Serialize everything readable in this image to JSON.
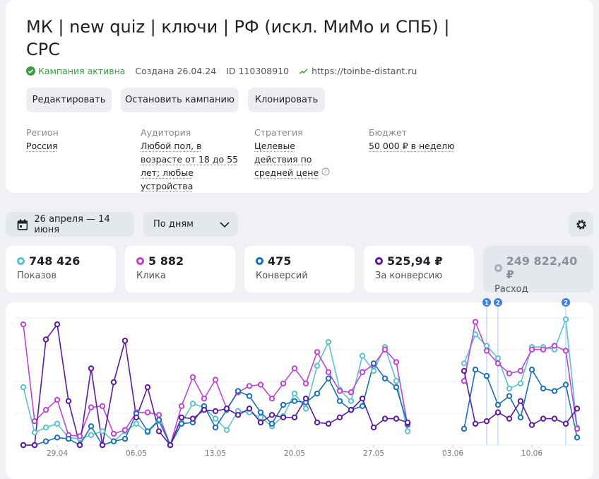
{
  "campaign": {
    "title": "МК | new quiz | ключи | РФ (искл. МиМо и СПБ) | CPC",
    "status": "Кампания активна",
    "created": "Создана 26.04.24",
    "id": "ID 110308910",
    "url": "https://toinbe-distant.ru"
  },
  "buttons": [
    "Редактировать",
    "Остановить кампанию",
    "Клонировать"
  ],
  "info": [
    {
      "label": "Регион",
      "value": "Россия"
    },
    {
      "label": "Аудитория",
      "value": "Любой пол, в возрасте от 18 до 55 лет; любые устройства"
    },
    {
      "label": "Стратегия",
      "value": "Целевые действия по средней цене"
    },
    {
      "label": "Бюджет",
      "value": "50 000 ₽ в неделю"
    }
  ],
  "filters": {
    "date": "26 апреля — 14 июня",
    "period": "По дням"
  },
  "metrics": [
    {
      "value": "748 426",
      "label": "Показов",
      "color": "#5cc3cc"
    },
    {
      "value": "5 882",
      "label": "Клика",
      "color": "#c044d3"
    },
    {
      "value": "475",
      "label": "Конверсий",
      "color": "#1b6fb3"
    },
    {
      "value": "525,94 ₽",
      "label": "За конверсию",
      "color": "#5b1c9c"
    },
    {
      "value": "249 822,40 ₽",
      "label": "Расход",
      "color": "#a9afb9"
    }
  ],
  "chart_data": {
    "type": "line",
    "ylim": [
      0,
      100
    ],
    "categories": [
      null,
      null,
      null,
      "29.04",
      null,
      null,
      null,
      null,
      null,
      null,
      "06.05",
      null,
      null,
      null,
      null,
      null,
      null,
      "13.05",
      null,
      null,
      null,
      null,
      null,
      null,
      "20.05",
      null,
      null,
      null,
      null,
      null,
      null,
      "27.05",
      null,
      null,
      null,
      null,
      null,
      null,
      "03.06",
      null,
      null,
      null,
      null,
      null,
      null,
      "10.06",
      null,
      null,
      null,
      null
    ],
    "series": [
      {
        "color": "#5cc3cc",
        "values": [
          46,
          10,
          14,
          17,
          6,
          5,
          8,
          11,
          3,
          11,
          17,
          10,
          19,
          0,
          18,
          33,
          30,
          21,
          12,
          27,
          26,
          22,
          15,
          23,
          41,
          29,
          63,
          82,
          44,
          35,
          71,
          59,
          78,
          51,
          11,
          null,
          null,
          null,
          null,
          65,
          88,
          79,
          69,
          45,
          49,
          78,
          78,
          76,
          100,
          14
        ]
      },
      {
        "color": "#c044d3",
        "values": [
          96,
          19,
          28,
          36,
          8,
          7,
          30,
          31,
          9,
          12,
          26,
          26,
          24,
          0,
          31,
          54,
          37,
          52,
          29,
          42,
          47,
          48,
          37,
          49,
          61,
          49,
          74,
          58,
          43,
          42,
          58,
          64,
          76,
          66,
          16,
          null,
          null,
          null,
          null,
          51,
          98,
          75,
          65,
          57,
          59,
          76,
          76,
          79,
          75,
          13
        ]
      },
      {
        "color": "#1b6fb3",
        "values": [
          0,
          0,
          3,
          6,
          5,
          0,
          15,
          0,
          3,
          5,
          25,
          11,
          20,
          0,
          17,
          18,
          31,
          14,
          28,
          43,
          39,
          26,
          17,
          32,
          35,
          34,
          41,
          53,
          35,
          28,
          31,
          65,
          53,
          46,
          17,
          null,
          null,
          null,
          null,
          13,
          60,
          55,
          32,
          39,
          22,
          60,
          45,
          43,
          48,
          6
        ]
      },
      {
        "color": "#5b1c9c",
        "values": [
          0,
          0,
          84,
          96,
          35,
          0,
          61,
          0,
          50,
          83,
          22,
          46,
          11,
          0,
          22,
          21,
          28,
          27,
          29,
          24,
          29,
          18,
          24,
          22,
          22,
          37,
          18,
          17,
          22,
          28,
          37,
          14,
          21,
          21,
          18,
          null,
          null,
          null,
          null,
          59,
          17,
          19,
          26,
          21,
          35,
          16,
          21,
          21,
          17,
          29
        ]
      }
    ],
    "annotations": [
      {
        "x": 41,
        "label": "1"
      },
      {
        "x": 42,
        "label": "2"
      },
      {
        "x": 48,
        "label": "2"
      }
    ]
  }
}
